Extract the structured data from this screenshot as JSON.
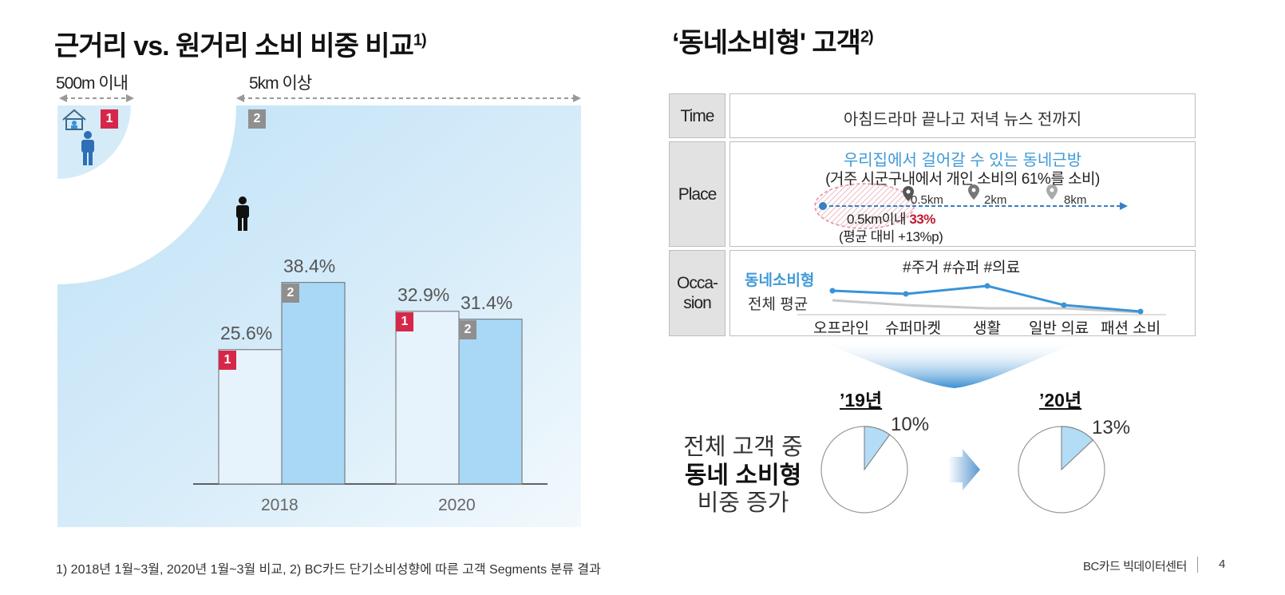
{
  "left": {
    "title": "근거리 vs. 원거리 소비 비중 비교",
    "title_note": "1)",
    "near_label": "500m 이내",
    "far_label": "5km 이상",
    "zone_near_badge": "1",
    "zone_far_badge": "2",
    "colors": {
      "near_bar": "#e6f3fc",
      "far_bar": "#a9d8f6",
      "badge_near": "#d6274a",
      "badge_far": "#8f8f8f"
    },
    "icons": [
      "house-icon",
      "person-blue-icon",
      "person-black-icon"
    ]
  },
  "chart_data": {
    "type": "bar",
    "categories": [
      "2018",
      "2020"
    ],
    "series": [
      {
        "name": "1",
        "values": [
          25.6,
          32.9
        ],
        "labels": [
          "25.6%",
          "32.9%"
        ]
      },
      {
        "name": "2",
        "values": [
          38.4,
          31.4
        ],
        "labels": [
          "38.4%",
          "31.4%"
        ]
      }
    ],
    "ylim": [
      0,
      42
    ],
    "title": "",
    "xlabel": "",
    "ylabel": "",
    "grid": false
  },
  "right": {
    "title": "‘동네소비형' 고객",
    "title_note": "2)",
    "time_label": "Time",
    "time_text": "아침드라마 끝나고 저녁 뉴스 전까지",
    "place_label": "Place",
    "place_line1": "우리집에서 걸어갈 수 있는 동네근방",
    "place_line2": "(거주 시군구내에서 개인 소비의 61%를 소비)",
    "markers": [
      "0.5km",
      "2km",
      "8km"
    ],
    "near_share_label": "0.5km이내",
    "near_share_value": "33%",
    "near_share_note": "(평균 대비 +13%p)",
    "occasion_label": "Occa-\nsion",
    "occasion_tags": "#주거 #슈퍼 #의료",
    "legend_local": "동네소비형",
    "legend_avg": "전체 평균",
    "categories": [
      "오프라인",
      "슈퍼마켓",
      "생활",
      "일반 의료",
      "패션 소비"
    ],
    "colors": {
      "local_line": "#3a93d6",
      "avg_line": "#c9c9c9",
      "accent_text": "#3f9ad8",
      "highlight": "#c0172f"
    }
  },
  "summary": {
    "line1": "전체 고객 중",
    "line2": "동네 소비형",
    "line3": "비중 증가",
    "year_a": "’19년",
    "year_b": "’20년",
    "pie_a_value": 10,
    "pie_a_label": "10%",
    "pie_b_value": 13,
    "pie_b_label": "13%",
    "pie_fill": "#b3dcf6"
  },
  "footer": {
    "note": "1) 2018년 1월~3월, 2020년 1월~3월 비교, 2) BC카드 단기소비성향에 따른 고객 Segments 분류 결과",
    "brand": "BC카드 빅데이터센터",
    "page": "4"
  }
}
